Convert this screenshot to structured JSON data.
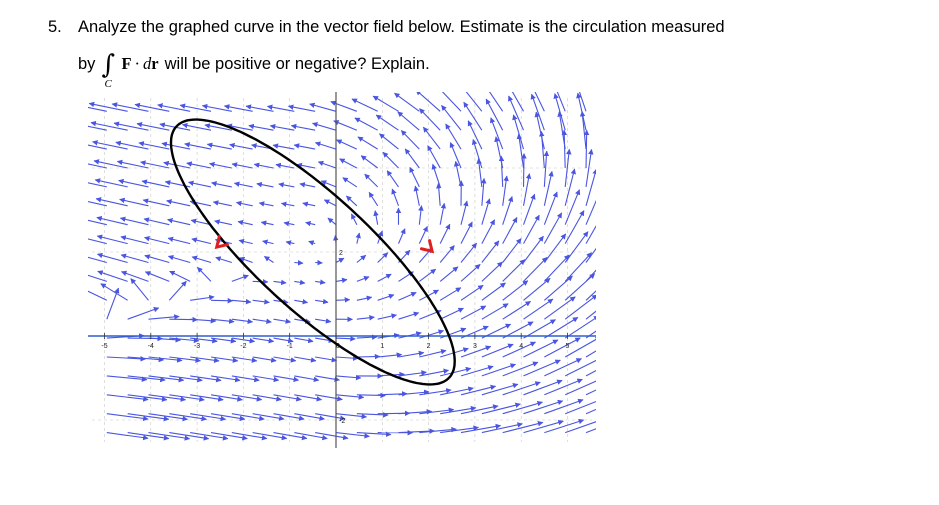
{
  "question": {
    "number": "5.",
    "line1": "Analyze the graphed  curve in the vector field below. Estimate is the circulation measured",
    "line2_prefix": "by",
    "integral_symbol": "∫",
    "integral_subscript": "C",
    "integrand_F": "F",
    "integrand_dot": "·",
    "integrand_d": "d",
    "integrand_r": "r",
    "line2_rest": " will be positive or negative?  Explain."
  },
  "chart_data": {
    "type": "vector_field",
    "x_ticks": [
      "-5",
      "-4",
      "-3",
      "-2",
      "-1",
      "0",
      "1",
      "2",
      "3",
      "4",
      "5"
    ],
    "y_ticks": [
      "2",
      "-2"
    ],
    "xlim": [
      -5.6,
      5.6
    ],
    "ylim": [
      -2.5,
      5.0
    ],
    "grid": "dashed",
    "colors": {
      "field_arrow": "#4a55e0",
      "curve": "#000000",
      "curve_arrow": "#e02020",
      "axis": "#2f5fd0"
    },
    "curve": {
      "shape": "ellipse",
      "center": [
        -0.5,
        2.0
      ],
      "semi_axis_major": 4.2,
      "semi_axis_minor": 1.3,
      "rotation_deg": -46,
      "orientation_arrows": [
        {
          "at": [
            -2.5,
            2.2
          ],
          "direction": "down-left"
        },
        {
          "at": [
            2.0,
            2.1
          ],
          "direction": "down-right"
        }
      ]
    }
  }
}
